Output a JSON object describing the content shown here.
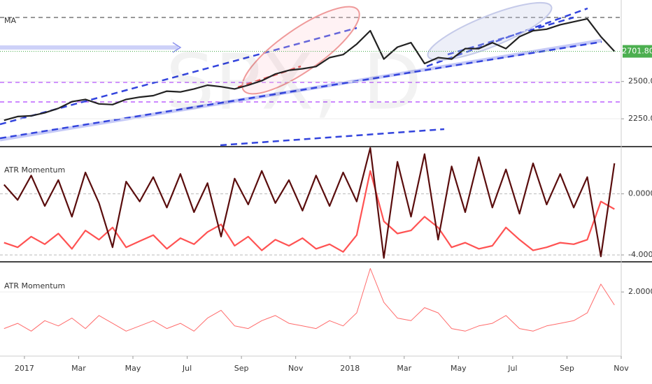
{
  "chart_data": [
    {
      "type": "line",
      "label": "MA",
      "watermark": "SPX, D",
      "x": [
        -0.75,
        -0.25,
        0.25,
        0.75,
        1.25,
        1.75,
        2.25,
        2.75,
        3.25,
        3.75,
        4.25,
        4.75,
        5.25,
        5.75,
        6.25,
        6.75,
        7.25,
        7.75,
        8.25,
        8.75,
        9.25,
        9.75,
        10.25,
        10.75,
        11.25,
        11.75,
        12.25,
        12.75,
        13.25,
        13.75,
        14.25,
        14.75,
        15.25,
        15.75,
        16.25,
        16.75,
        17.25,
        17.75,
        18.25,
        18.75,
        19.25,
        19.75,
        20.25,
        20.75,
        21.25,
        21.75
      ],
      "xlim": [
        -0.9,
        22
      ],
      "series": [
        {
          "color": "#222222",
          "values": [
            2240,
            2265,
            2270,
            2290,
            2320,
            2365,
            2380,
            2350,
            2345,
            2380,
            2395,
            2405,
            2435,
            2430,
            2450,
            2475,
            2465,
            2450,
            2475,
            2505,
            2550,
            2575,
            2585,
            2600,
            2660,
            2680,
            2750,
            2840,
            2650,
            2730,
            2760,
            2620,
            2660,
            2650,
            2720,
            2720,
            2760,
            2720,
            2800,
            2840,
            2850,
            2880,
            2900,
            2920,
            2800,
            2701.8
          ]
        }
      ],
      "ylim": [
        2073,
        3027
      ],
      "yticks": [
        {
          "value": 2250,
          "label": "2250.00"
        },
        {
          "value": 2500,
          "label": "2500.00"
        }
      ],
      "price_tag": {
        "value": 2701.8,
        "label": "2701.80",
        "color": "#4caf50"
      },
      "grid": true
    },
    {
      "type": "line",
      "title": "ATR Momentum",
      "x": [
        -0.75,
        -0.25,
        0.25,
        0.75,
        1.25,
        1.75,
        2.25,
        2.75,
        3.25,
        3.75,
        4.25,
        4.75,
        5.25,
        5.75,
        6.25,
        6.75,
        7.25,
        7.75,
        8.25,
        8.75,
        9.25,
        9.75,
        10.25,
        10.75,
        11.25,
        11.75,
        12.25,
        12.75,
        13.25,
        13.75,
        14.25,
        14.75,
        15.25,
        15.75,
        16.25,
        16.75,
        17.25,
        17.75,
        18.25,
        18.75,
        19.25,
        19.75,
        20.25,
        20.75,
        21.25,
        21.75
      ],
      "xlim": [
        -0.9,
        22
      ],
      "series": [
        {
          "color": "#ff5252",
          "values": [
            -3.2,
            -3.5,
            -2.8,
            -3.3,
            -2.6,
            -3.6,
            -2.4,
            -3.0,
            -2.2,
            -3.5,
            -3.1,
            -2.7,
            -3.6,
            -2.9,
            -3.3,
            -2.5,
            -2.0,
            -3.4,
            -2.8,
            -3.7,
            -3.0,
            -3.4,
            -2.9,
            -3.6,
            -3.3,
            -3.8,
            -2.7,
            1.5,
            -1.8,
            -2.6,
            -2.4,
            -1.5,
            -2.2,
            -3.5,
            -3.2,
            -3.6,
            -3.4,
            -2.2,
            -3.0,
            -3.7,
            -3.5,
            -3.2,
            -3.3,
            -3.0,
            -0.5,
            -1.0
          ]
        },
        {
          "color": "#5a0d0d",
          "values": [
            0.6,
            -0.4,
            1.2,
            -0.8,
            0.9,
            -1.5,
            1.4,
            -0.6,
            -3.5,
            0.8,
            -0.5,
            1.1,
            -0.9,
            1.3,
            -1.2,
            0.7,
            -2.8,
            1.0,
            -0.7,
            1.5,
            -0.6,
            0.9,
            -1.1,
            1.2,
            -0.8,
            1.4,
            -0.5,
            3.0,
            -4.2,
            2.1,
            -1.5,
            2.6,
            -3.0,
            1.8,
            -1.2,
            2.4,
            -0.9,
            1.6,
            -1.3,
            2.0,
            -0.7,
            1.3,
            -0.9,
            1.1,
            -4.1,
            2.0
          ]
        }
      ],
      "ylim": [
        -4.36,
        3.0
      ],
      "yticks": [
        {
          "value": 0,
          "label": "0.0000"
        },
        {
          "value": -4,
          "label": "-4.0000"
        }
      ]
    },
    {
      "type": "line",
      "title": "ATR Momentum",
      "x": [
        -0.75,
        -0.25,
        0.25,
        0.75,
        1.25,
        1.75,
        2.25,
        2.75,
        3.25,
        3.75,
        4.25,
        4.75,
        5.25,
        5.75,
        6.25,
        6.75,
        7.25,
        7.75,
        8.25,
        8.75,
        9.25,
        9.75,
        10.25,
        10.75,
        11.25,
        11.75,
        12.25,
        12.75,
        13.25,
        13.75,
        14.25,
        14.75,
        15.25,
        15.75,
        16.25,
        16.75,
        17.25,
        17.75,
        18.25,
        18.75,
        19.25,
        19.75,
        20.25,
        20.75,
        21.25,
        21.75
      ],
      "xlim": [
        -0.9,
        22
      ],
      "series": [
        {
          "color": "#ff6b6b",
          "values": [
            0.6,
            0.8,
            0.5,
            0.9,
            0.7,
            1.0,
            0.6,
            1.1,
            0.8,
            0.5,
            0.7,
            0.9,
            0.6,
            0.8,
            0.5,
            1.0,
            1.3,
            0.7,
            0.6,
            0.9,
            1.1,
            0.8,
            0.7,
            0.6,
            0.9,
            0.7,
            1.2,
            2.9,
            1.6,
            1.0,
            0.9,
            1.4,
            1.2,
            0.6,
            0.5,
            0.7,
            0.8,
            1.1,
            0.6,
            0.5,
            0.7,
            0.8,
            0.9,
            1.2,
            2.3,
            1.5
          ]
        }
      ],
      "ylim": [
        -0.4,
        3.1
      ],
      "yticks": [
        {
          "value": 2,
          "label": "2.0000"
        }
      ],
      "xticks": [
        {
          "value": 0,
          "label": "2017"
        },
        {
          "value": 2,
          "label": "Mar"
        },
        {
          "value": 4,
          "label": "May"
        },
        {
          "value": 6,
          "label": "Jul"
        },
        {
          "value": 8,
          "label": "Sep"
        },
        {
          "value": 10,
          "label": "Nov"
        },
        {
          "value": 12,
          "label": "2018"
        },
        {
          "value": 14,
          "label": "Mar"
        },
        {
          "value": 16,
          "label": "May"
        },
        {
          "value": 18,
          "label": "Jul"
        },
        {
          "value": 20,
          "label": "Sep"
        },
        {
          "value": 22,
          "label": "Nov"
        }
      ]
    }
  ]
}
